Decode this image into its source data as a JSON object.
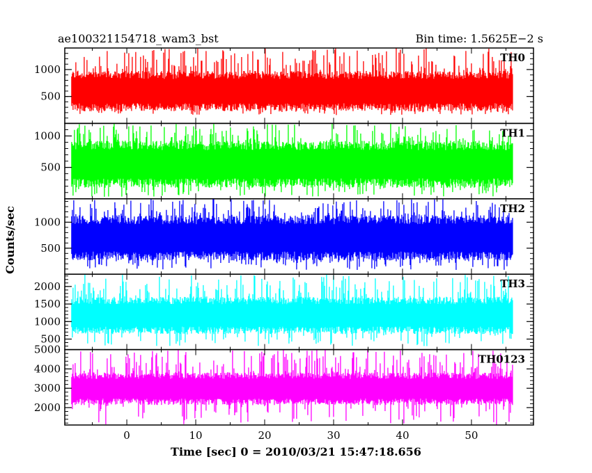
{
  "header": {
    "left_title": "ae100321154718_wam3_bst",
    "right_title": "Bin time: 1.5625E−2 s"
  },
  "chart_data": {
    "type": "line",
    "title": "ae100321154718_wam3_bst",
    "subtitle": "Bin time: 1.5625E−2 s",
    "xlabel": "Time [sec] 0 = 2010/03/21 15:47:18.656",
    "ylabel": "Counts/sec",
    "xlim": [
      -9,
      59
    ],
    "x_data_range": [
      -8,
      56
    ],
    "x_ticks": [
      0,
      10,
      20,
      30,
      40,
      50
    ],
    "x_tick_labels": [
      "0",
      "10",
      "20",
      "30",
      "40",
      "50"
    ],
    "grid": false,
    "panels": [
      {
        "name": "TH0",
        "color": "#ff0000",
        "ylim": [
          0,
          1400
        ],
        "y_ticks": [
          500,
          1000
        ],
        "y_tick_labels": [
          "500",
          "1000"
        ],
        "stats": {
          "mean": 600,
          "low": 300,
          "high": 900,
          "min": 150,
          "max": 1400
        }
      },
      {
        "name": "TH1",
        "color": "#00ff00",
        "ylim": [
          0,
          1200
        ],
        "y_ticks": [
          500,
          1000
        ],
        "y_tick_labels": [
          "500",
          "1000"
        ],
        "stats": {
          "mean": 550,
          "low": 250,
          "high": 850,
          "min": 30,
          "max": 1200
        }
      },
      {
        "name": "TH2",
        "color": "#0000ff",
        "ylim": [
          0,
          1450
        ],
        "y_ticks": [
          500,
          1000
        ],
        "y_tick_labels": [
          "500",
          "1000"
        ],
        "stats": {
          "mean": 700,
          "low": 350,
          "high": 1050,
          "min": 80,
          "max": 1450
        }
      },
      {
        "name": "TH3",
        "color": "#00ffff",
        "ylim": [
          200,
          2350
        ],
        "y_ticks": [
          500,
          1000,
          1500,
          2000
        ],
        "y_tick_labels": [
          "500",
          "1000",
          "1500",
          "2000"
        ],
        "stats": {
          "mean": 1150,
          "low": 750,
          "high": 1600,
          "min": 300,
          "max": 2350
        }
      },
      {
        "name": "TH0123",
        "color": "#ff00ff",
        "ylim": [
          1100,
          5000
        ],
        "y_ticks": [
          2000,
          3000,
          4000,
          5000
        ],
        "y_tick_labels": [
          "2000",
          "3000",
          "4000",
          "5000"
        ],
        "stats": {
          "mean": 2950,
          "low": 2300,
          "high": 3650,
          "min": 1100,
          "max": 5000
        }
      }
    ]
  }
}
